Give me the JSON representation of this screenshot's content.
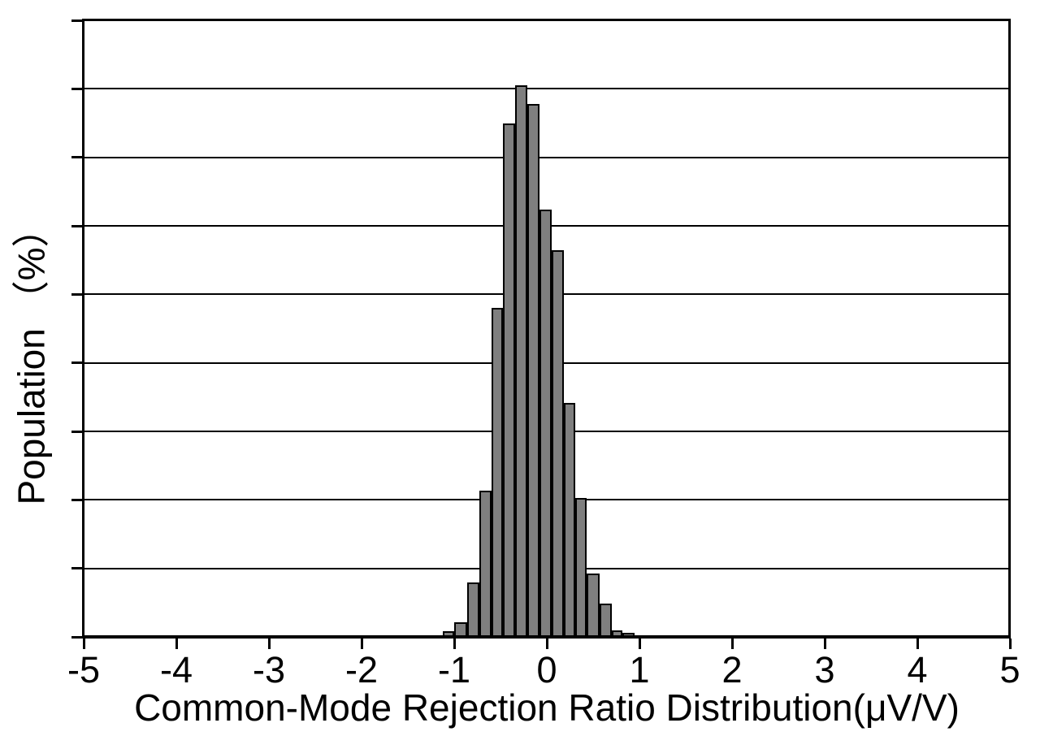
{
  "figure": {
    "background_color": "#ffffff",
    "frame_color": "#000000",
    "text_color": "#000000"
  },
  "chart_data": {
    "type": "bar",
    "subtype": "histogram",
    "title": "",
    "xlabel": "Common-Mode Rejection Ratio Distribution(μV/V)",
    "ylabel": "Population （%）",
    "xlim": [
      -5,
      5
    ],
    "ylim": [
      0,
      18
    ],
    "x_ticks": [
      -5,
      -4,
      -3,
      -2,
      -1,
      0,
      1,
      2,
      3,
      4,
      5
    ],
    "x_tick_labels": [
      "-5",
      "-4",
      "-3",
      "-2",
      "-1",
      "0",
      "1",
      "2",
      "3",
      "4",
      "5"
    ],
    "y_tick_labels_shown": false,
    "y_gridline_step": 2,
    "grid": "horizontal",
    "legend_position": "none",
    "bar_fill_color": "#7f7f7f",
    "bar_edge_color": "#000000",
    "bins": [
      {
        "range": [
          -1.12,
          -1.0
        ],
        "value": 0.17
      },
      {
        "range": [
          -1.0,
          -0.86
        ],
        "value": 0.43
      },
      {
        "range": [
          -0.86,
          -0.73
        ],
        "value": 1.59
      },
      {
        "range": [
          -0.73,
          -0.6
        ],
        "value": 4.27
      },
      {
        "range": [
          -0.6,
          -0.47
        ],
        "value": 9.6
      },
      {
        "range": [
          -0.47,
          -0.34
        ],
        "value": 14.99
      },
      {
        "range": [
          -0.34,
          -0.21
        ],
        "value": 16.1
      },
      {
        "range": [
          -0.21,
          -0.08
        ],
        "value": 15.56
      },
      {
        "range": [
          -0.08,
          0.05
        ],
        "value": 12.47
      },
      {
        "range": [
          0.05,
          0.18
        ],
        "value": 11.29
      },
      {
        "range": [
          0.18,
          0.31
        ],
        "value": 6.83
      },
      {
        "range": [
          0.31,
          0.43
        ],
        "value": 4.06
      },
      {
        "range": [
          0.43,
          0.57
        ],
        "value": 1.85
      },
      {
        "range": [
          0.57,
          0.7
        ],
        "value": 0.97
      },
      {
        "range": [
          0.7,
          0.82
        ],
        "value": 0.19
      },
      {
        "range": [
          0.82,
          0.95
        ],
        "value": 0.12
      }
    ]
  }
}
